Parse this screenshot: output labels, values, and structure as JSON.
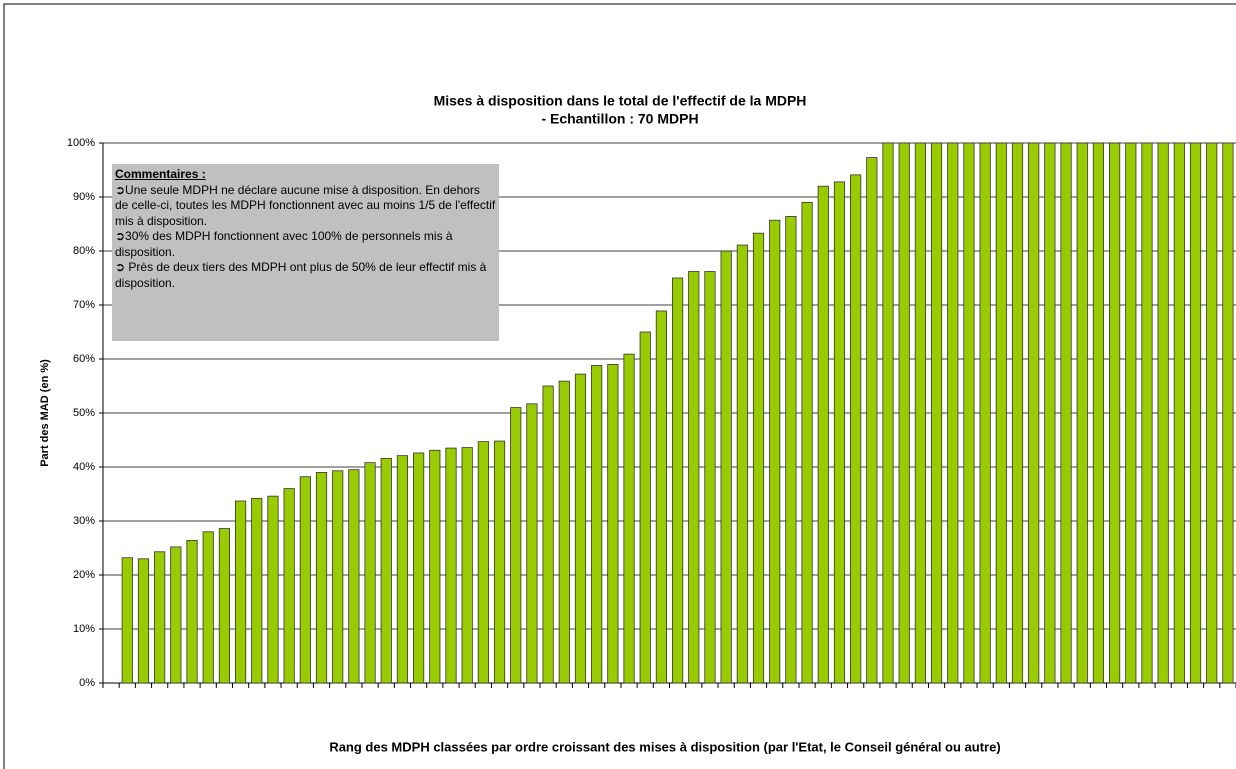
{
  "chart_data": {
    "type": "bar",
    "title": "Mises à disposition dans le total de l'effectif de la MDPH",
    "subtitle": "- Echantillon : 70 MDPH",
    "y_label": "Part des MAD (en %)",
    "x_label": "Rang des MDPH classées par ordre croissant des mises à disposition (par l'Etat, le Conseil général ou autre)",
    "annotation": {
      "title": "Commentaires :",
      "lines": [
        "➲Une seule MDPH ne déclare aucune mise à disposition. En dehors de celle-ci, toutes les MDPH fonctionnent avec au moins 1/5 de l'effectif mis à disposition.",
        "➲30% des MDPH fonctionnent avec 100% de personnels mis à disposition.",
        "➲ Près de deux tiers des MDPH ont plus de 50% de leur effectif mis à disposition."
      ]
    },
    "categories": [
      null,
      null,
      null,
      null,
      null,
      null,
      null,
      null,
      null,
      null,
      null,
      null,
      null,
      null,
      null,
      null,
      null,
      null,
      null,
      null,
      null,
      null,
      null,
      null,
      null,
      null,
      null,
      null,
      null,
      null,
      null,
      null,
      null,
      null,
      null,
      null,
      null,
      null,
      null,
      null,
      null,
      null,
      null,
      null,
      null,
      null,
      null,
      null,
      null,
      null,
      null,
      null,
      null,
      null,
      null,
      null,
      null,
      null,
      null,
      null,
      null,
      null,
      null,
      null,
      null,
      null,
      null,
      null,
      null,
      null
    ],
    "values": [
      0,
      23.2,
      23.0,
      24.3,
      25.2,
      26.4,
      28.0,
      28.6,
      33.7,
      34.2,
      34.6,
      36.0,
      38.2,
      39.0,
      39.3,
      39.5,
      40.8,
      41.6,
      42.1,
      42.6,
      43.1,
      43.5,
      43.6,
      44.7,
      44.8,
      51.0,
      51.7,
      55.0,
      55.9,
      57.2,
      58.8,
      59.0,
      60.9,
      65.0,
      68.9,
      75.0,
      76.2,
      76.2,
      80.0,
      81.1,
      83.3,
      85.7,
      86.4,
      89.0,
      92.0,
      92.8,
      94.1,
      97.3,
      100,
      100,
      100,
      100,
      100,
      100,
      100,
      100,
      100,
      100,
      100,
      100,
      100,
      100,
      100,
      100,
      100,
      100,
      100,
      100,
      100,
      100
    ],
    "color": "#99cc00",
    "ylim": [
      0,
      100
    ],
    "yticks": [
      {
        "value": 0,
        "label": "0%"
      },
      {
        "value": 10,
        "label": "10%"
      },
      {
        "value": 20,
        "label": "20%"
      },
      {
        "value": 30,
        "label": "30%"
      },
      {
        "value": 40,
        "label": "40%"
      },
      {
        "value": 50,
        "label": "50%"
      },
      {
        "value": 60,
        "label": "60%"
      },
      {
        "value": 70,
        "label": "70%"
      },
      {
        "value": 80,
        "label": "80%"
      },
      {
        "value": 90,
        "label": "90%"
      },
      {
        "value": 100,
        "label": "100%"
      }
    ],
    "grid": true
  }
}
